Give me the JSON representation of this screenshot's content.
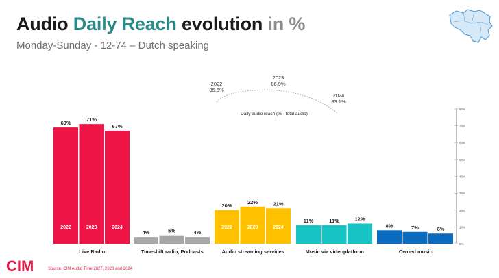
{
  "title": {
    "part1": "Audio ",
    "part2": "Daily Reach",
    "part3": " evolution ",
    "part4": "in %"
  },
  "subtitle": "Monday-Sunday - 12-74 – Dutch speaking",
  "source": "Source: CIM Audio Time 2027, 2023 and 2024",
  "logo_text": "CIM",
  "colors": {
    "title_teal": "#2a8a87",
    "title_grey": "#8c8c8c",
    "live_radio": "#ee1445",
    "timeshift": "#a6a6a6",
    "streaming": "#ffc000",
    "videoplatform": "#17c3c3",
    "owned_music": "#0a6bbf",
    "brand": "#e11d48"
  },
  "chart_data": {
    "type": "bar",
    "categories": [
      "Live Radio",
      "Timeshift radio, Podcasts",
      "Audio streaming services",
      "Music via videoplatform",
      "Owned music"
    ],
    "series_years": [
      "2022",
      "2023",
      "2024"
    ],
    "values": [
      [
        69,
        71,
        67
      ],
      [
        4,
        5,
        4
      ],
      [
        20,
        22,
        21
      ],
      [
        11,
        11,
        12
      ],
      [
        8,
        7,
        6
      ]
    ],
    "value_labels": [
      [
        "69%",
        "71%",
        "67%"
      ],
      [
        "4%",
        "5%",
        "4%"
      ],
      [
        "20%",
        "22%",
        "21%"
      ],
      [
        "11%",
        "11%",
        "12%"
      ],
      [
        "8%",
        "7%",
        "6%"
      ]
    ],
    "in_bar_year_labels": [
      true,
      false,
      true,
      false,
      false
    ],
    "ylim": [
      0,
      80
    ],
    "right_axis_ticks": [
      "0%",
      "10%",
      "20%",
      "30%",
      "40%",
      "50%",
      "60%",
      "70%",
      "80%"
    ],
    "total_reach": {
      "label": "Daily audio reach (% - total audio)",
      "points": [
        {
          "year": "2022",
          "value": "85.5%"
        },
        {
          "year": "2023",
          "value": "86.9%"
        },
        {
          "year": "2024",
          "value": "83.1%"
        }
      ]
    }
  }
}
